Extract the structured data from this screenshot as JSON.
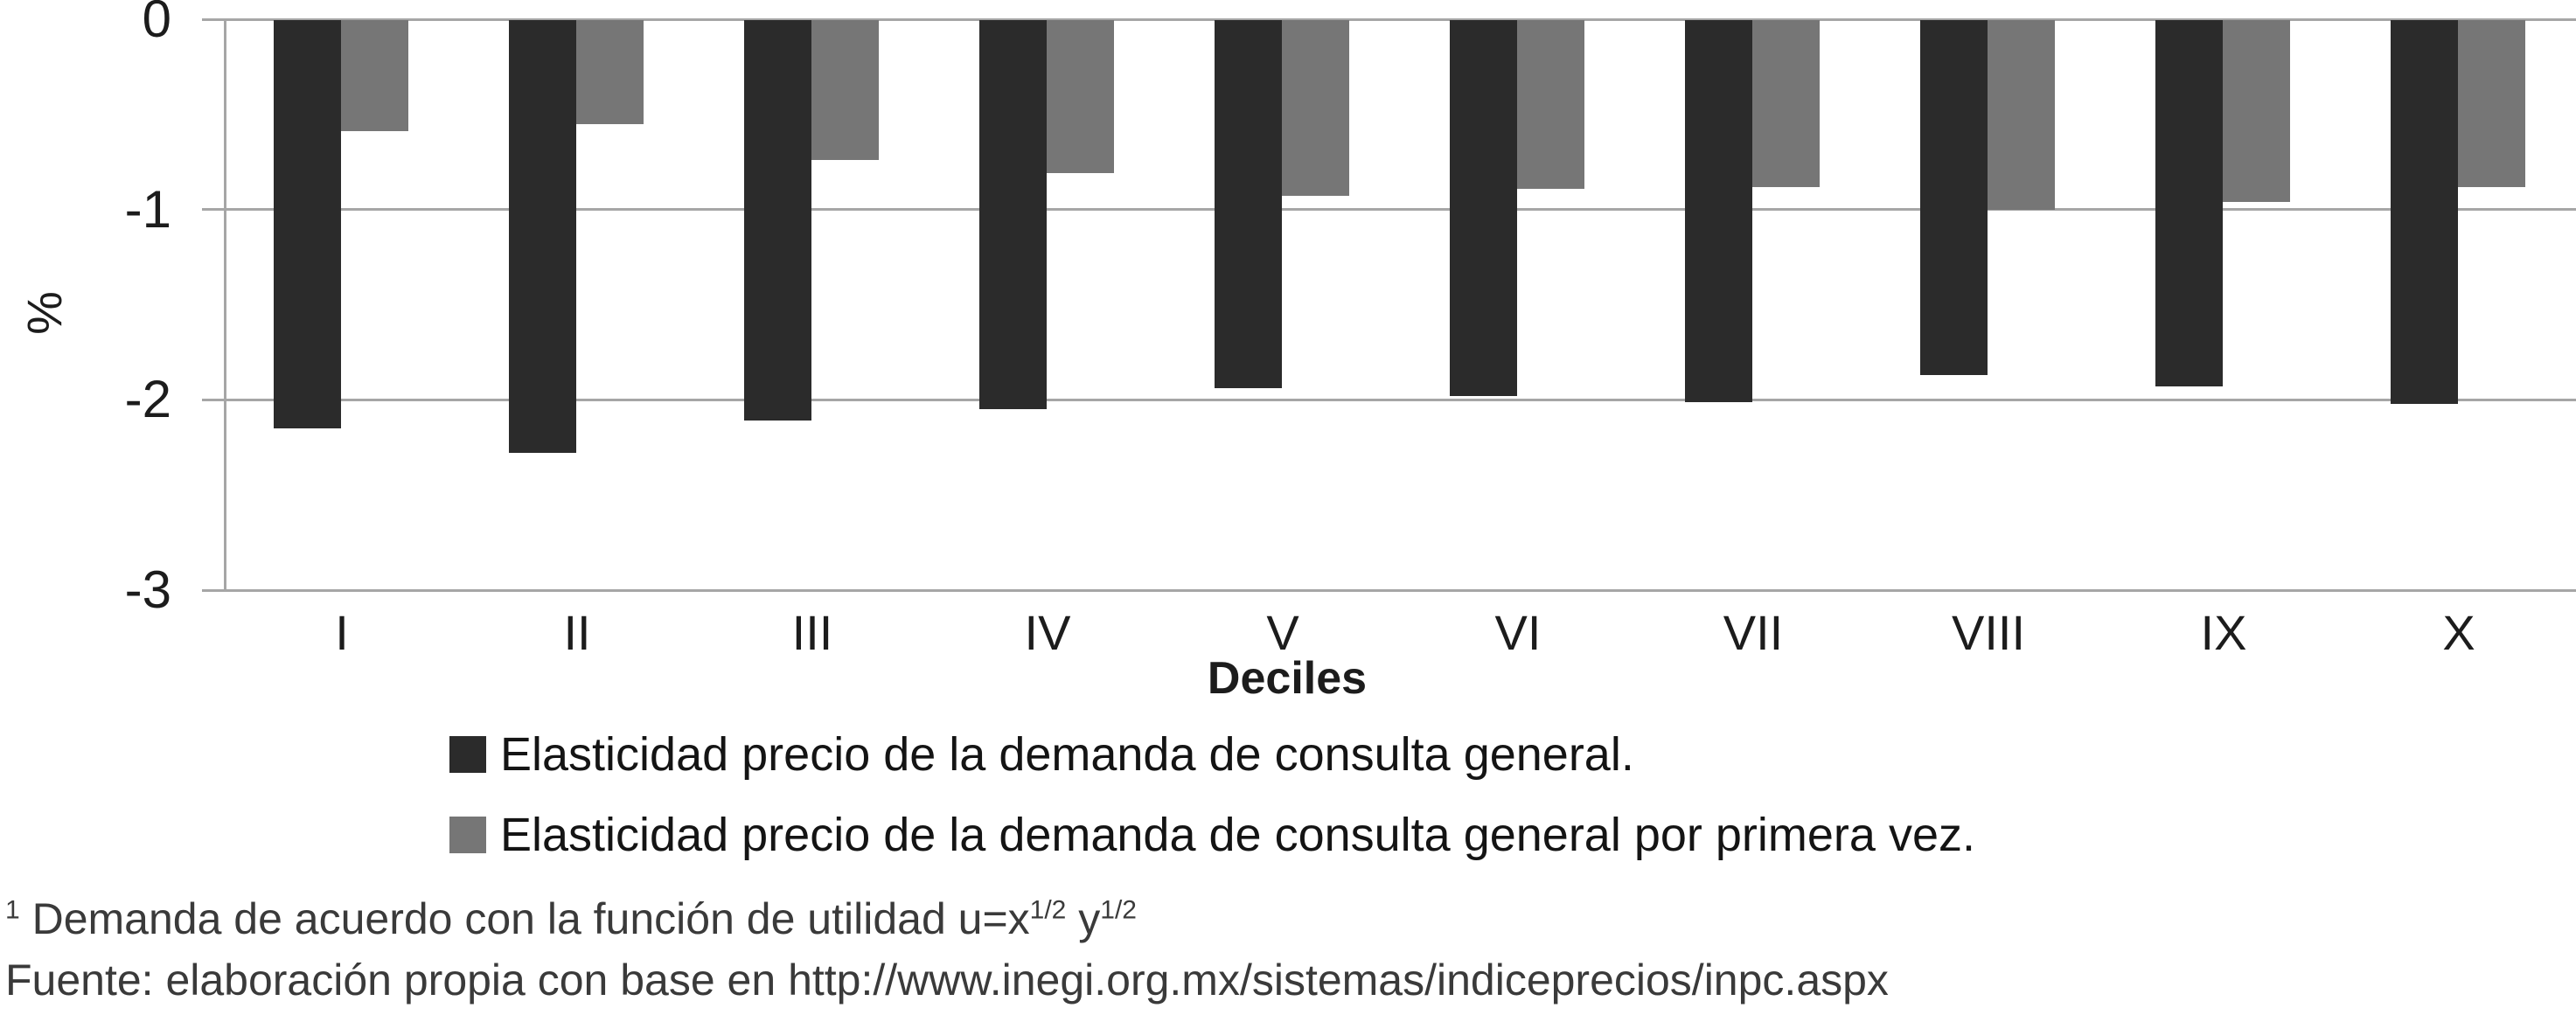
{
  "chart_data": {
    "type": "bar",
    "title": "",
    "categories": [
      "I",
      "II",
      "III",
      "IV",
      "V",
      "VI",
      "VII",
      "VIII",
      "IX",
      "X"
    ],
    "series": [
      {
        "name": "Elasticidad precio de la demanda de consulta general.",
        "color": "#2b2b2b",
        "values": [
          -2.15,
          -2.28,
          -2.11,
          -2.05,
          -1.94,
          -1.98,
          -2.01,
          -1.87,
          -1.93,
          -2.02
        ]
      },
      {
        "name": "Elasticidad precio de la demanda de consulta general por primera vez.",
        "color": "#767676",
        "values": [
          -0.59,
          -0.55,
          -0.74,
          -0.81,
          -0.93,
          -0.89,
          -0.88,
          -1.0,
          -0.96,
          -0.88
        ]
      }
    ],
    "xlabel": "Deciles",
    "ylabel": "%",
    "ylim": [
      -3,
      0
    ],
    "yticks": [
      0,
      -1,
      -2,
      -3
    ],
    "grid": true,
    "legend_position": "bottom"
  },
  "colors": {
    "grid": "#a6a6a6",
    "axis": "#a6a6a6",
    "tick_text": "#1c1c1c",
    "footer_text": "#3a3a3a"
  },
  "footnote": {
    "marker": "1",
    "text": " Demanda de acuerdo con la función de utilidad u=x",
    "sup_x": "1/2",
    "between": " y",
    "sup_y": "1/2"
  },
  "source": "Fuente: elaboración propia con base en http://www.inegi.org.mx/sistemas/indiceprecios/inpc.aspx"
}
